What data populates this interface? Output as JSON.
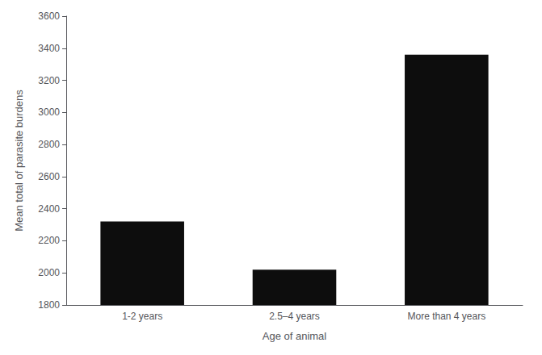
{
  "chart_data": {
    "type": "bar",
    "categories": [
      "1-2 years",
      "2.5–4 years",
      "More than 4 years"
    ],
    "values": [
      2320,
      2020,
      3360
    ],
    "color": "#0d0d0d",
    "xlabel": "Age of animal",
    "ylabel": "Mean total of parasite burdens",
    "ylim": [
      1800,
      3600
    ],
    "yticks": [
      1800,
      2000,
      2200,
      2400,
      2600,
      2800,
      3000,
      3200,
      3400,
      3600
    ],
    "grid": false
  }
}
